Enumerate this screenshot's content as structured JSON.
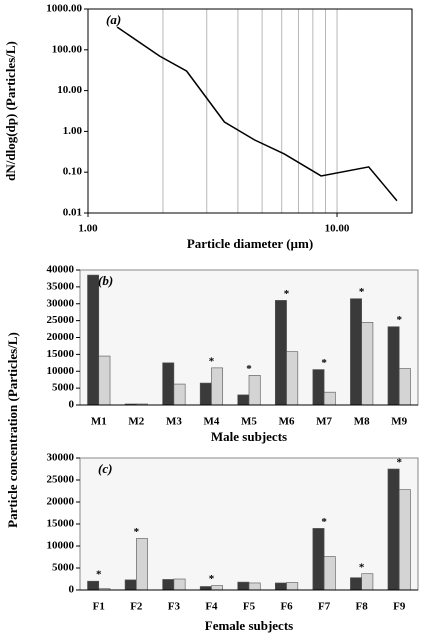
{
  "chart_data": [
    {
      "type": "line",
      "panel_label": "(a)",
      "xlabel": "Particle diameter (µm)",
      "ylabel": "dN/dlog(dp) (Particles/L)",
      "xscale": "log",
      "yscale": "log",
      "x": [
        1.31,
        1.94,
        2.49,
        3.53,
        4.66,
        6.14,
        8.63,
        13.4,
        17.4
      ],
      "series": [
        {
          "color": "#000000",
          "values": [
            360,
            70,
            30,
            1.7,
            0.62,
            0.28,
            0.081,
            0.135,
            0.02
          ]
        }
      ],
      "xlim": [
        1,
        20
      ],
      "ylim": [
        0.01,
        1000
      ],
      "xticks": [
        {
          "value": 1,
          "label": "1.00"
        },
        {
          "value": 10,
          "label": "10.00"
        }
      ],
      "yticks": [
        {
          "value": 0.01,
          "label": "0.01"
        },
        {
          "value": 0.1,
          "label": "0.10"
        },
        {
          "value": 1,
          "label": "1.00"
        },
        {
          "value": 10,
          "label": "10.00"
        },
        {
          "value": 100,
          "label": "100.00"
        },
        {
          "value": 1000,
          "label": "1000.00"
        }
      ],
      "xgrid": [
        2,
        3,
        4,
        5,
        6,
        7,
        8,
        9,
        10
      ]
    },
    {
      "type": "bar",
      "panel_label": "(b)",
      "xlabel": "Male subjects",
      "ylabel": "Particle concentration (Particles/L)",
      "categories": [
        "M1",
        "M2",
        "M3",
        "M4",
        "M5",
        "M6",
        "M7",
        "M8",
        "M9"
      ],
      "series": [
        {
          "color": "#3a3a3a",
          "values": [
            38500,
            300,
            12500,
            6500,
            3000,
            31000,
            10500,
            31500,
            23200
          ]
        },
        {
          "color": "#d4d4d4",
          "values": [
            14500,
            300,
            6200,
            11000,
            8800,
            15800,
            3800,
            24500,
            10800
          ]
        }
      ],
      "significance": [
        null,
        null,
        null,
        "*",
        "*",
        "*",
        "*",
        "*",
        "*"
      ],
      "ylim": [
        0,
        40000
      ],
      "yticks": [
        0,
        5000,
        10000,
        15000,
        20000,
        25000,
        30000,
        35000,
        40000
      ]
    },
    {
      "type": "bar",
      "panel_label": "(c)",
      "xlabel": "Female subjects",
      "categories": [
        "F1",
        "F2",
        "F3",
        "F4",
        "F5",
        "F6",
        "F7",
        "F8",
        "F9"
      ],
      "series": [
        {
          "color": "#3a3a3a",
          "values": [
            2000,
            2300,
            2400,
            800,
            1800,
            1600,
            14000,
            2800,
            27500
          ]
        },
        {
          "color": "#d4d4d4",
          "values": [
            300,
            11700,
            2500,
            1000,
            1600,
            1700,
            7600,
            3700,
            22800
          ]
        }
      ],
      "significance": [
        "*",
        "*",
        null,
        "*",
        null,
        null,
        "*",
        "*",
        "*"
      ],
      "ylim": [
        0,
        30000
      ],
      "yticks": [
        0,
        5000,
        10000,
        15000,
        20000,
        25000,
        30000
      ]
    }
  ]
}
